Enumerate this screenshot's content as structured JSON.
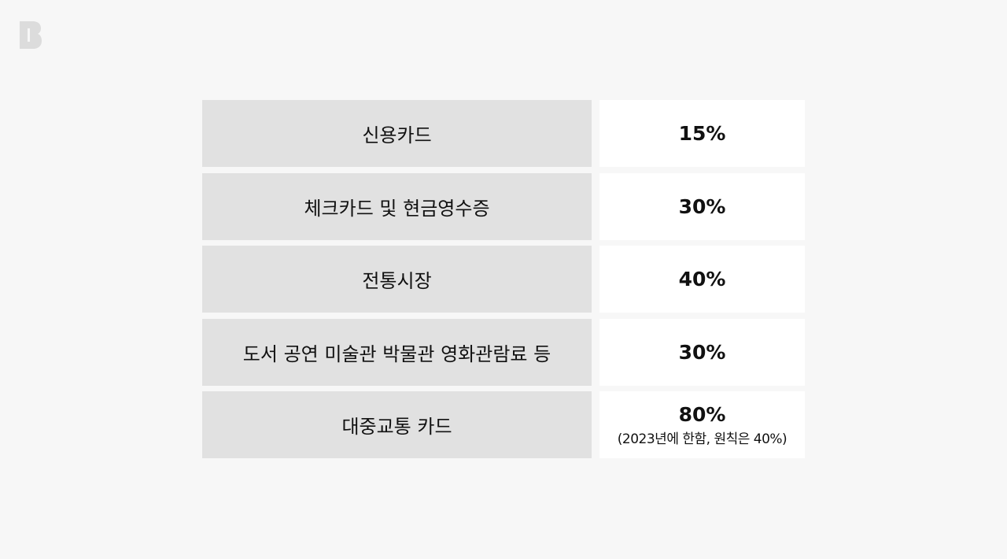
{
  "logo": {
    "text": "B",
    "color": "#dcdcdc"
  },
  "rows": [
    {
      "label": "신용카드",
      "value": "15%"
    },
    {
      "label": "체크카드 및 현금영수증",
      "value": "30%"
    },
    {
      "label": "전통시장",
      "value": "40%"
    },
    {
      "label": "도서 공연 미술관 박물관 영화관람료 등",
      "value": "30%"
    },
    {
      "label": "대중교통 카드",
      "value": "80%",
      "note": "(2023년에 한함, 원칙은 40%)"
    }
  ]
}
